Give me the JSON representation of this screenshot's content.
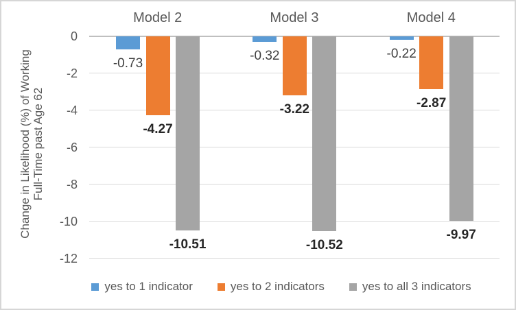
{
  "chart_data": {
    "type": "bar",
    "categories": [
      "Model 2",
      "Model 3",
      "Model 4"
    ],
    "series": [
      {
        "name": "yes to 1 indicator",
        "color": "#5B9BD5",
        "values": [
          -0.73,
          -0.32,
          -0.22
        ],
        "labels": [
          "-0.73",
          "-0.32",
          "-0.22"
        ],
        "labels_bold": false
      },
      {
        "name": "yes to 2 indicators",
        "color": "#ED7D31",
        "values": [
          -4.27,
          -3.22,
          -2.87
        ],
        "labels": [
          "-4.27",
          "-3.22",
          "-2.87"
        ],
        "labels_bold": true
      },
      {
        "name": "yes to all 3 indicators",
        "color": "#A5A5A5",
        "values": [
          -10.51,
          -10.52,
          -9.97
        ],
        "labels": [
          "-10.51",
          "-10.52",
          "-9.97"
        ],
        "labels_bold": true
      }
    ],
    "ylabel_line1": "Change in Likelihood (%) of Working",
    "ylabel_line2": "Full-Time past Age 62",
    "yticks": [
      0,
      -2,
      -4,
      -6,
      -8,
      -10,
      -12
    ],
    "ytick_labels": [
      "0",
      "-2",
      "-4",
      "-6",
      "-8",
      "-10",
      "-12"
    ],
    "ylim": [
      0,
      -12
    ],
    "grid": true,
    "data_labels": true,
    "legend_position": "bottom"
  },
  "style": {
    "axis_text_color": "#595959",
    "data_label_color": "#404040",
    "data_label_bold_color": "#262626",
    "gridline_color": "#D9D9D9",
    "axis_line_color": "#BFBFBF",
    "border_color": "#D6D6D6",
    "background": "#FFFFFF"
  }
}
